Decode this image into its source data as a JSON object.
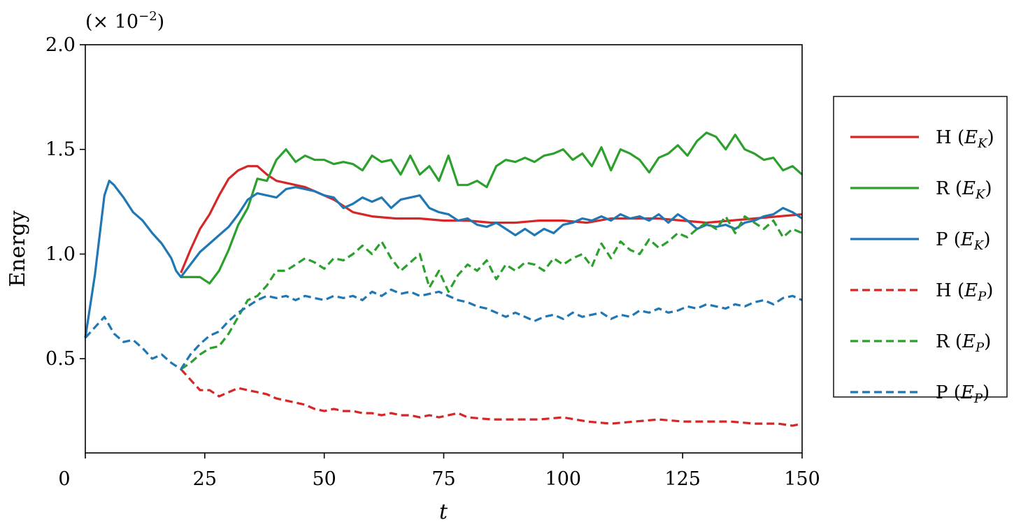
{
  "chart_data": {
    "type": "line",
    "xlabel": "t",
    "ylabel": "Energy",
    "y_multiplier": "(× 10",
    "y_multiplier_exp": "−2",
    "y_multiplier_close": ")",
    "xlim": [
      0,
      150
    ],
    "ylim": [
      0.05,
      2.0
    ],
    "xticks": [
      0,
      25,
      50,
      75,
      100,
      125,
      150
    ],
    "xtick_labels": [
      "0",
      "25",
      "50",
      "75",
      "100",
      "125",
      "150"
    ],
    "yticks": [
      0.5,
      1.0,
      1.5,
      2.0
    ],
    "ytick_labels": [
      "0.5",
      "1.0",
      "1.5",
      "2.0"
    ],
    "grid": false,
    "legend_placement": "outside right",
    "series": [
      {
        "name": "H (E_K)",
        "label_main": "H (",
        "label_var": "E",
        "label_sub": "K",
        "label_close": ")",
        "color": "#d62728",
        "dash": "solid",
        "x": [
          20,
          22,
          24,
          26,
          28,
          30,
          32,
          34,
          36,
          38,
          40,
          42,
          44,
          46,
          48,
          50,
          52,
          54,
          56,
          58,
          60,
          65,
          70,
          75,
          80,
          85,
          90,
          95,
          100,
          105,
          110,
          115,
          120,
          125,
          130,
          135,
          140,
          145,
          150
        ],
        "y": [
          0.91,
          1.02,
          1.12,
          1.19,
          1.28,
          1.36,
          1.4,
          1.42,
          1.42,
          1.38,
          1.35,
          1.34,
          1.33,
          1.32,
          1.3,
          1.28,
          1.26,
          1.23,
          1.2,
          1.19,
          1.18,
          1.17,
          1.17,
          1.16,
          1.16,
          1.15,
          1.15,
          1.16,
          1.16,
          1.15,
          1.17,
          1.17,
          1.17,
          1.16,
          1.15,
          1.16,
          1.17,
          1.18,
          1.19
        ]
      },
      {
        "name": "R (E_K)",
        "label_main": "R (",
        "label_var": "E",
        "label_sub": "K",
        "label_close": ")",
        "color": "#2ca02c",
        "dash": "solid",
        "x": [
          20,
          22,
          24,
          26,
          28,
          30,
          32,
          34,
          36,
          38,
          40,
          42,
          44,
          46,
          48,
          50,
          52,
          54,
          56,
          58,
          60,
          62,
          64,
          66,
          68,
          70,
          72,
          74,
          76,
          78,
          80,
          82,
          84,
          86,
          88,
          90,
          92,
          94,
          96,
          98,
          100,
          102,
          104,
          106,
          108,
          110,
          112,
          114,
          116,
          118,
          120,
          122,
          124,
          126,
          128,
          130,
          132,
          134,
          136,
          138,
          140,
          142,
          144,
          146,
          148,
          150
        ],
        "y": [
          0.89,
          0.89,
          0.89,
          0.86,
          0.92,
          1.02,
          1.14,
          1.22,
          1.36,
          1.35,
          1.45,
          1.5,
          1.44,
          1.47,
          1.45,
          1.45,
          1.43,
          1.44,
          1.43,
          1.4,
          1.47,
          1.44,
          1.45,
          1.38,
          1.47,
          1.38,
          1.42,
          1.35,
          1.47,
          1.33,
          1.33,
          1.35,
          1.32,
          1.42,
          1.45,
          1.44,
          1.46,
          1.44,
          1.47,
          1.48,
          1.5,
          1.45,
          1.48,
          1.42,
          1.51,
          1.4,
          1.5,
          1.48,
          1.45,
          1.39,
          1.46,
          1.48,
          1.52,
          1.47,
          1.54,
          1.58,
          1.56,
          1.5,
          1.57,
          1.5,
          1.48,
          1.45,
          1.46,
          1.4,
          1.42,
          1.38
        ]
      },
      {
        "name": "P (E_K)",
        "label_main": "P (",
        "label_var": "E",
        "label_sub": "K",
        "label_close": ")",
        "color": "#1f77b4",
        "dash": "solid",
        "x": [
          0,
          2,
          4,
          5,
          6,
          8,
          10,
          12,
          14,
          16,
          18,
          19,
          20,
          22,
          24,
          26,
          28,
          30,
          32,
          34,
          36,
          38,
          40,
          42,
          44,
          46,
          48,
          50,
          52,
          54,
          56,
          58,
          60,
          62,
          64,
          66,
          68,
          70,
          72,
          74,
          76,
          78,
          80,
          82,
          84,
          86,
          88,
          90,
          92,
          94,
          96,
          98,
          100,
          102,
          104,
          106,
          108,
          110,
          112,
          114,
          116,
          118,
          120,
          122,
          124,
          126,
          128,
          130,
          132,
          134,
          136,
          138,
          140,
          142,
          144,
          146,
          148,
          150
        ],
        "y": [
          0.6,
          0.9,
          1.28,
          1.35,
          1.33,
          1.27,
          1.2,
          1.16,
          1.1,
          1.05,
          0.98,
          0.92,
          0.89,
          0.95,
          1.01,
          1.05,
          1.09,
          1.13,
          1.19,
          1.26,
          1.29,
          1.28,
          1.27,
          1.31,
          1.32,
          1.31,
          1.3,
          1.28,
          1.27,
          1.22,
          1.24,
          1.27,
          1.25,
          1.27,
          1.22,
          1.26,
          1.27,
          1.28,
          1.22,
          1.2,
          1.19,
          1.16,
          1.17,
          1.14,
          1.13,
          1.15,
          1.12,
          1.09,
          1.12,
          1.09,
          1.12,
          1.1,
          1.14,
          1.15,
          1.17,
          1.16,
          1.18,
          1.16,
          1.19,
          1.17,
          1.18,
          1.16,
          1.19,
          1.15,
          1.19,
          1.16,
          1.12,
          1.14,
          1.13,
          1.14,
          1.12,
          1.15,
          1.16,
          1.18,
          1.19,
          1.22,
          1.2,
          1.17
        ]
      },
      {
        "name": "H (E_P)",
        "label_main": "H (",
        "label_var": "E",
        "label_sub": "P",
        "label_close": ")",
        "color": "#d62728",
        "dash": "dashed",
        "x": [
          20,
          22,
          24,
          26,
          28,
          30,
          32,
          34,
          36,
          38,
          40,
          42,
          44,
          46,
          48,
          50,
          52,
          54,
          56,
          58,
          60,
          62,
          64,
          66,
          68,
          70,
          72,
          74,
          76,
          78,
          80,
          85,
          90,
          95,
          100,
          105,
          110,
          115,
          120,
          125,
          130,
          135,
          140,
          145,
          148,
          150
        ],
        "y": [
          0.45,
          0.4,
          0.35,
          0.35,
          0.32,
          0.34,
          0.36,
          0.35,
          0.34,
          0.33,
          0.31,
          0.3,
          0.29,
          0.28,
          0.26,
          0.25,
          0.26,
          0.25,
          0.25,
          0.24,
          0.24,
          0.23,
          0.24,
          0.23,
          0.23,
          0.22,
          0.23,
          0.22,
          0.23,
          0.24,
          0.22,
          0.21,
          0.21,
          0.21,
          0.22,
          0.2,
          0.19,
          0.2,
          0.21,
          0.2,
          0.2,
          0.2,
          0.19,
          0.19,
          0.18,
          0.19
        ]
      },
      {
        "name": "R (E_P)",
        "label_main": "R (",
        "label_var": "E",
        "label_sub": "P",
        "label_close": ")",
        "color": "#2ca02c",
        "dash": "dashed",
        "x": [
          20,
          22,
          24,
          26,
          28,
          30,
          32,
          34,
          36,
          38,
          40,
          42,
          44,
          46,
          48,
          50,
          52,
          54,
          56,
          58,
          60,
          62,
          64,
          66,
          68,
          70,
          72,
          74,
          76,
          78,
          80,
          82,
          84,
          86,
          88,
          90,
          92,
          94,
          96,
          98,
          100,
          102,
          104,
          106,
          108,
          110,
          112,
          114,
          116,
          118,
          120,
          122,
          124,
          126,
          128,
          130,
          132,
          134,
          136,
          138,
          140,
          142,
          144,
          146,
          148,
          150
        ],
        "y": [
          0.45,
          0.48,
          0.52,
          0.55,
          0.56,
          0.62,
          0.7,
          0.78,
          0.8,
          0.85,
          0.92,
          0.92,
          0.95,
          0.98,
          0.96,
          0.93,
          0.98,
          0.97,
          1.0,
          1.04,
          1.0,
          1.06,
          0.98,
          0.92,
          0.96,
          1.0,
          0.84,
          0.92,
          0.82,
          0.9,
          0.95,
          0.92,
          0.97,
          0.88,
          0.95,
          0.92,
          0.96,
          0.95,
          0.92,
          0.98,
          0.95,
          0.98,
          1.0,
          0.94,
          1.05,
          0.98,
          1.06,
          1.02,
          1.0,
          1.07,
          1.03,
          1.06,
          1.1,
          1.08,
          1.12,
          1.15,
          1.12,
          1.18,
          1.1,
          1.18,
          1.15,
          1.12,
          1.16,
          1.08,
          1.12,
          1.1
        ]
      },
      {
        "name": "P (E_P)",
        "label_main": "P (",
        "label_var": "E",
        "label_sub": "P",
        "label_close": ")",
        "color": "#1f77b4",
        "dash": "dashed",
        "x": [
          0,
          2,
          4,
          6,
          8,
          10,
          12,
          14,
          16,
          18,
          20,
          22,
          24,
          26,
          28,
          30,
          32,
          34,
          36,
          38,
          40,
          42,
          44,
          46,
          48,
          50,
          52,
          54,
          56,
          58,
          60,
          62,
          64,
          66,
          68,
          70,
          72,
          74,
          76,
          78,
          80,
          82,
          84,
          86,
          88,
          90,
          92,
          94,
          96,
          98,
          100,
          102,
          104,
          106,
          108,
          110,
          112,
          114,
          116,
          118,
          120,
          122,
          124,
          126,
          128,
          130,
          132,
          134,
          136,
          138,
          140,
          142,
          144,
          146,
          148,
          150
        ],
        "y": [
          0.6,
          0.65,
          0.7,
          0.62,
          0.58,
          0.59,
          0.55,
          0.5,
          0.52,
          0.48,
          0.45,
          0.52,
          0.57,
          0.61,
          0.63,
          0.68,
          0.72,
          0.75,
          0.78,
          0.8,
          0.79,
          0.8,
          0.78,
          0.8,
          0.79,
          0.78,
          0.8,
          0.79,
          0.8,
          0.78,
          0.82,
          0.8,
          0.83,
          0.81,
          0.82,
          0.8,
          0.81,
          0.82,
          0.8,
          0.78,
          0.77,
          0.75,
          0.74,
          0.72,
          0.7,
          0.72,
          0.7,
          0.68,
          0.7,
          0.71,
          0.69,
          0.72,
          0.7,
          0.71,
          0.72,
          0.69,
          0.71,
          0.7,
          0.73,
          0.72,
          0.74,
          0.72,
          0.73,
          0.75,
          0.74,
          0.76,
          0.75,
          0.74,
          0.76,
          0.75,
          0.77,
          0.78,
          0.76,
          0.79,
          0.8,
          0.78
        ]
      }
    ]
  }
}
